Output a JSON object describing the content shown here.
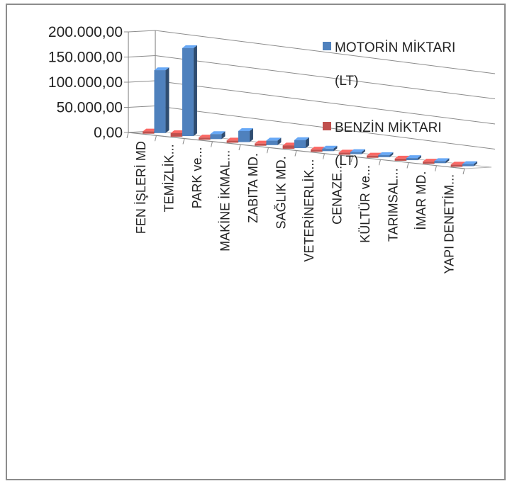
{
  "chart_data": {
    "type": "bar",
    "title": "",
    "xlabel": "",
    "ylabel": "",
    "ylim": [
      0,
      200000
    ],
    "y_ticks": [
      "0,00",
      "50.000,00",
      "100.000,00",
      "150.000,00",
      "200.000,00"
    ],
    "categories": [
      "FEN İŞLERİ MD",
      "TEMİZLİK...",
      "PARK ve...",
      "MAKİNE İKMAL...",
      "ZABITA MD.",
      "SAĞLIK MD.",
      "VETERİNERLİK...",
      "CENAZE...",
      "KÜLTÜR ve...",
      "TARIMSAL...",
      "İMAR MD.",
      "YAPI DENETİM..."
    ],
    "series": [
      {
        "name": "MOTORİN MİKTARI (LT)",
        "color": "#4f81bd",
        "values": [
          125000,
          175000,
          10000,
          22000,
          9000,
          16000,
          5000,
          4000,
          2500,
          3000,
          2000,
          2000
        ]
      },
      {
        "name": "BENZİN MİKTARI (LT)",
        "color": "#c0504d",
        "values": [
          3000,
          7000,
          3500,
          2000,
          2000,
          6500,
          2500,
          1500,
          2000,
          1500,
          1500,
          1500
        ]
      }
    ],
    "grid": true,
    "legend": "right",
    "legend_lines": [
      [
        "MOTORİN MİKTARI",
        "(LT)"
      ],
      [
        "BENZİN MİKTARI",
        "(LT)"
      ]
    ]
  }
}
